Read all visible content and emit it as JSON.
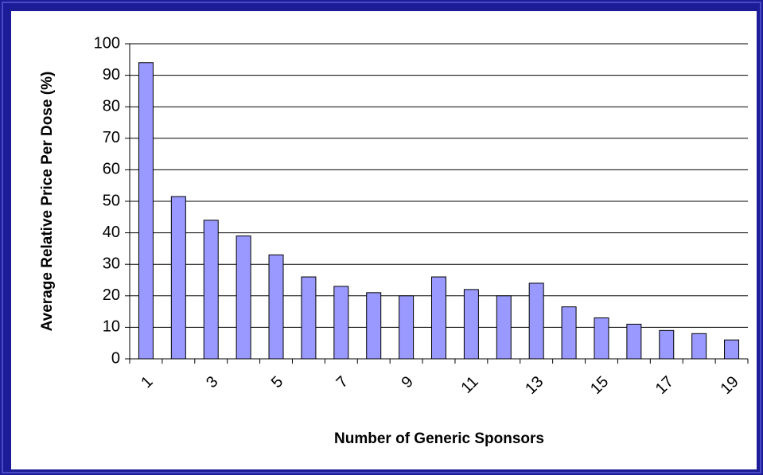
{
  "chart_data": {
    "type": "bar",
    "categories": [
      1,
      null,
      3,
      null,
      5,
      null,
      7,
      null,
      9,
      null,
      11,
      null,
      13,
      null,
      15,
      null,
      17,
      null,
      19
    ],
    "values": [
      94,
      51.5,
      44,
      39,
      33,
      26,
      23,
      21,
      20,
      26,
      22,
      20,
      24,
      16.5,
      13,
      11,
      9,
      8,
      6
    ],
    "color": "#9999ff",
    "x_label": "Number of Generic Sponsors",
    "y_label": "Average Relative Price Per Dose (%)",
    "ylim": [
      0,
      100
    ],
    "yticks": [
      0,
      10,
      20,
      30,
      40,
      50,
      60,
      70,
      80,
      90,
      100
    ],
    "grid": true
  }
}
